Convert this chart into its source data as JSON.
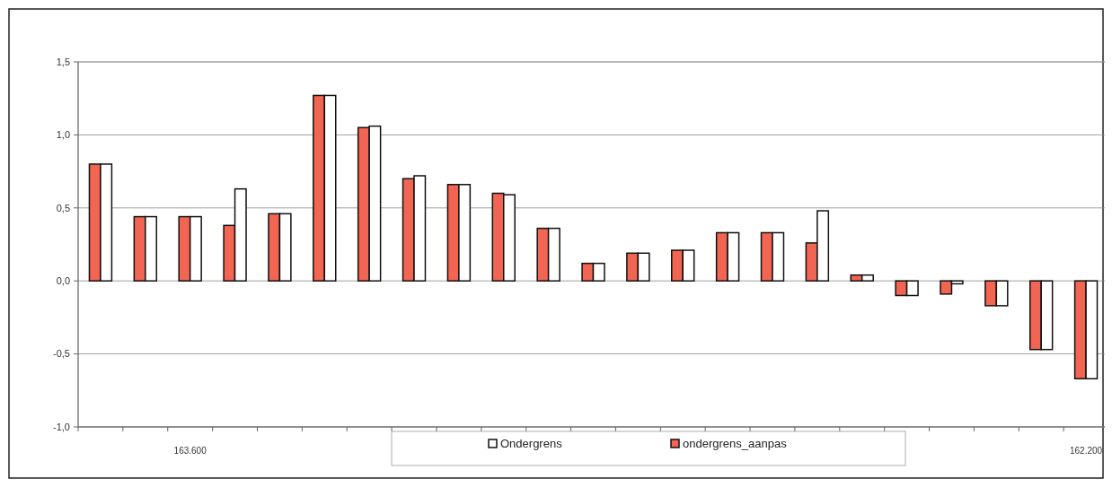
{
  "chart_data": {
    "type": "bar",
    "categories": [
      null,
      null,
      "163.600",
      null,
      null,
      null,
      null,
      null,
      null,
      null,
      null,
      null,
      null,
      null,
      null,
      null,
      null,
      null,
      null,
      null,
      null,
      null,
      "162.200"
    ],
    "series": [
      {
        "name": "ondergrens_aanpas",
        "color": "#f26552",
        "values": [
          0.8,
          0.44,
          0.44,
          0.38,
          0.46,
          1.27,
          1.05,
          0.7,
          0.66,
          0.6,
          0.36,
          0.12,
          0.19,
          0.21,
          0.33,
          0.33,
          0.26,
          0.04,
          -0.1,
          -0.09,
          -0.17,
          -0.47,
          -0.67
        ]
      },
      {
        "name": "Ondergrens",
        "color": "#ffffff",
        "values": [
          0.8,
          0.44,
          0.44,
          0.63,
          0.46,
          1.27,
          1.06,
          0.72,
          0.66,
          0.59,
          0.36,
          0.12,
          0.19,
          0.21,
          0.33,
          0.33,
          0.48,
          0.04,
          -0.1,
          -0.02,
          -0.17,
          -0.47,
          -0.67
        ]
      }
    ],
    "ylim": [
      -1.0,
      1.5
    ],
    "yticks": [
      {
        "value": -1.0,
        "label": "-1,0"
      },
      {
        "value": -0.5,
        "label": "-0,5"
      },
      {
        "value": 0,
        "label": "0,0"
      },
      {
        "value": 0.5,
        "label": "0,5"
      },
      {
        "value": 1.0,
        "label": "1,0"
      },
      {
        "value": 1.5,
        "label": "1,5"
      }
    ],
    "grid": "y",
    "legend": "bottom"
  }
}
